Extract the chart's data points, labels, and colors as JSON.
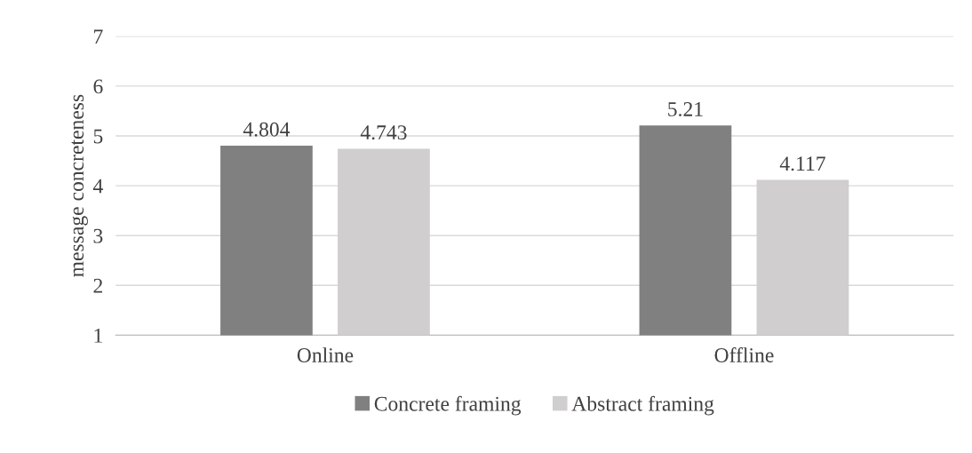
{
  "chart_data": {
    "type": "bar",
    "categories": [
      "Online",
      "Offline"
    ],
    "ylabel": "message concreteness",
    "series": [
      {
        "name": "Concrete framing",
        "color": "#808080",
        "values": [
          4.804,
          5.21
        ]
      },
      {
        "name": "Abstract framing",
        "color": "#d0cece",
        "values": [
          4.743,
          4.117
        ]
      }
    ],
    "ylim": [
      1,
      7
    ],
    "yticks": [
      1,
      2,
      3,
      4,
      5,
      6,
      7
    ],
    "grid": "y",
    "legend": "bottom",
    "data_labels": true
  }
}
